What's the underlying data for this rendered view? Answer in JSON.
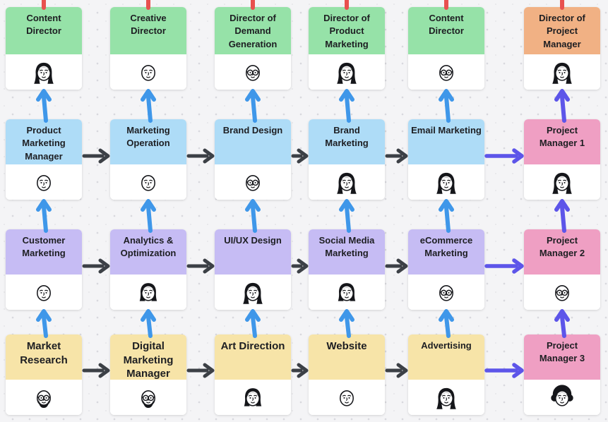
{
  "palette": {
    "green": "#96e2a8",
    "orange": "#f1b184",
    "blue": "#aedcf7",
    "purple": "#c6bcf4",
    "pink": "#ef9fc3",
    "yellow": "#f7e4a8"
  },
  "connector_colors": {
    "reports_up": "#3f97e9",
    "flow_right": "#3c4046",
    "project_line": "#5d55e9",
    "top_stub": "#e8514f"
  },
  "text_color": "#1d1e22",
  "rows": [
    {
      "cards": [
        {
          "title": "Content Director",
          "color": "green",
          "avatar": "woman-long-hair"
        },
        {
          "title": "Creative Director",
          "color": "green",
          "avatar": "man-short-hair"
        },
        {
          "title": "Director of Demand Generation",
          "color": "green",
          "avatar": "man-glasses"
        },
        {
          "title": "Director of Product Marketing",
          "color": "green",
          "avatar": "woman-long-hair"
        },
        {
          "title": "Content Director",
          "color": "green",
          "avatar": "man-glasses"
        },
        {
          "title": "Director of Project Manager",
          "color": "orange",
          "avatar": "woman-curly-hair"
        }
      ]
    },
    {
      "cards": [
        {
          "title": "Product Marketing Manager",
          "color": "blue",
          "avatar": "man-short-hair"
        },
        {
          "title": "Marketing Operation",
          "color": "blue",
          "avatar": "man-short-hair"
        },
        {
          "title": "Brand Design",
          "color": "blue",
          "avatar": "man-glasses"
        },
        {
          "title": "Brand Marketing",
          "color": "blue",
          "avatar": "woman-long-hair"
        },
        {
          "title": "Email Marketing",
          "color": "blue",
          "avatar": "woman-bangs"
        },
        {
          "title": "Project Manager 1",
          "color": "pink",
          "avatar": "woman-curly-hair"
        }
      ]
    },
    {
      "cards": [
        {
          "title": "Customer Marketing",
          "color": "purple",
          "avatar": "man-short-hair"
        },
        {
          "title": "Analytics & Optimization",
          "color": "purple",
          "avatar": "woman-curly-short"
        },
        {
          "title": "UI/UX Design",
          "color": "purple",
          "avatar": "woman-long-hair"
        },
        {
          "title": "Social Media Marketing",
          "color": "purple",
          "avatar": "woman-bob"
        },
        {
          "title": "eCommerce Marketing",
          "color": "purple",
          "avatar": "man-glasses"
        },
        {
          "title": "Project Manager 2",
          "color": "pink",
          "avatar": "man-glasses"
        }
      ]
    },
    {
      "cards": [
        {
          "title": "Market Research",
          "color": "yellow",
          "avatar": "man-glasses-beard",
          "size": "lg"
        },
        {
          "title": "Digital Marketing Manager",
          "color": "yellow",
          "avatar": "man-glasses-beard",
          "size": "lg"
        },
        {
          "title": "Art Direction",
          "color": "yellow",
          "avatar": "woman-bob",
          "size": "lg"
        },
        {
          "title": "Website",
          "color": "yellow",
          "avatar": "man-short-hair",
          "size": "lg"
        },
        {
          "title": "Advertising",
          "color": "yellow",
          "avatar": "woman-long-hair"
        },
        {
          "title": "Project Manager 3",
          "color": "pink",
          "avatar": "woman-afro"
        }
      ]
    }
  ]
}
